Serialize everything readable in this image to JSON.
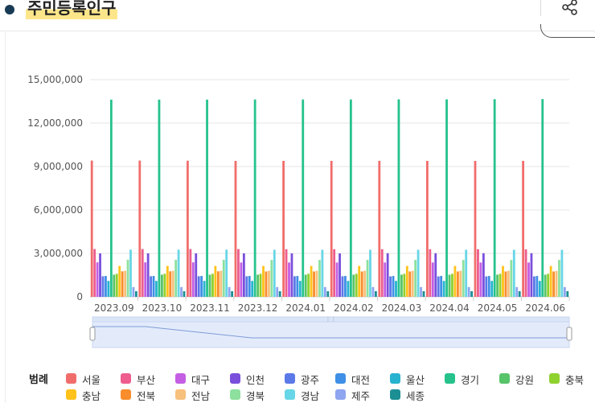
{
  "page": {
    "title": "주민등록인구"
  },
  "icons": {
    "share": "share-icon"
  },
  "legend_title": "범례",
  "colors": {
    "axis_text": "#555555",
    "grid": "#e5e5e5",
    "navigator_fill": "#e3ebfb",
    "navigator_line": "#7f9bd6"
  },
  "chart_data": {
    "type": "bar",
    "categories": [
      "2023.09",
      "2023.10",
      "2023.11",
      "2023.12",
      "2024.01",
      "2024.02",
      "2024.03",
      "2024.04",
      "2024.05",
      "2024.06"
    ],
    "ylim": [
      0,
      15000000
    ],
    "yticks": [
      0,
      3000000,
      6000000,
      9000000,
      12000000,
      15000000
    ],
    "ytick_labels": [
      "0",
      "3,000,000",
      "6,000,000",
      "9,000,000",
      "12,000,000",
      "15,000,000"
    ],
    "grid": true,
    "legend_position": "bottom",
    "series": [
      {
        "name": "서울",
        "color": "#f16d6b",
        "values": [
          9410000,
          9410000,
          9400000,
          9390000,
          9390000,
          9390000,
          9390000,
          9390000,
          9390000,
          9390000
        ]
      },
      {
        "name": "부산",
        "color": "#ee5d8d",
        "values": [
          3300000,
          3300000,
          3300000,
          3300000,
          3290000,
          3290000,
          3290000,
          3290000,
          3290000,
          3280000
        ]
      },
      {
        "name": "대구",
        "color": "#c45fe3",
        "values": [
          2380000,
          2380000,
          2380000,
          2370000,
          2370000,
          2370000,
          2370000,
          2370000,
          2370000,
          2370000
        ]
      },
      {
        "name": "인천",
        "color": "#7a4fdc",
        "values": [
          3000000,
          3000000,
          3000000,
          3000000,
          3000000,
          3000000,
          3010000,
          3010000,
          3010000,
          3010000
        ]
      },
      {
        "name": "광주",
        "color": "#5c79e8",
        "values": [
          1420000,
          1420000,
          1420000,
          1420000,
          1420000,
          1420000,
          1410000,
          1410000,
          1410000,
          1410000
        ]
      },
      {
        "name": "대전",
        "color": "#3f8fe6",
        "values": [
          1440000,
          1440000,
          1440000,
          1440000,
          1440000,
          1440000,
          1440000,
          1440000,
          1440000,
          1440000
        ]
      },
      {
        "name": "울산",
        "color": "#27b3d0",
        "values": [
          1100000,
          1100000,
          1100000,
          1100000,
          1100000,
          1100000,
          1100000,
          1100000,
          1100000,
          1100000
        ]
      },
      {
        "name": "경기",
        "color": "#25c28c",
        "values": [
          13620000,
          13620000,
          13620000,
          13630000,
          13630000,
          13630000,
          13640000,
          13640000,
          13650000,
          13660000
        ]
      },
      {
        "name": "강원",
        "color": "#57c46a",
        "values": [
          1530000,
          1530000,
          1530000,
          1530000,
          1530000,
          1530000,
          1530000,
          1530000,
          1530000,
          1530000
        ]
      },
      {
        "name": "충북",
        "color": "#8fd12f",
        "values": [
          1590000,
          1590000,
          1590000,
          1590000,
          1590000,
          1590000,
          1590000,
          1590000,
          1590000,
          1590000
        ]
      },
      {
        "name": "충남",
        "color": "#ffc21a",
        "values": [
          2130000,
          2130000,
          2130000,
          2130000,
          2130000,
          2130000,
          2130000,
          2130000,
          2130000,
          2130000
        ]
      },
      {
        "name": "전북",
        "color": "#f98c2b",
        "values": [
          1760000,
          1760000,
          1760000,
          1750000,
          1750000,
          1750000,
          1750000,
          1750000,
          1750000,
          1750000
        ]
      },
      {
        "name": "전남",
        "color": "#f7c07c",
        "values": [
          1800000,
          1800000,
          1800000,
          1800000,
          1800000,
          1800000,
          1800000,
          1800000,
          1800000,
          1790000
        ]
      },
      {
        "name": "경북",
        "color": "#8de09d",
        "values": [
          2560000,
          2560000,
          2560000,
          2550000,
          2550000,
          2550000,
          2550000,
          2550000,
          2550000,
          2550000
        ]
      },
      {
        "name": "경남",
        "color": "#67d6e6",
        "values": [
          3260000,
          3260000,
          3260000,
          3250000,
          3250000,
          3250000,
          3250000,
          3250000,
          3250000,
          3250000
        ]
      },
      {
        "name": "제주",
        "color": "#8fa5f0",
        "values": [
          675000,
          675000,
          675000,
          675000,
          675000,
          675000,
          675000,
          675000,
          675000,
          674000
        ]
      },
      {
        "name": "세종",
        "color": "#1b8f94",
        "values": [
          386000,
          386000,
          387000,
          387000,
          387000,
          388000,
          388000,
          389000,
          389000,
          390000
        ]
      }
    ]
  }
}
